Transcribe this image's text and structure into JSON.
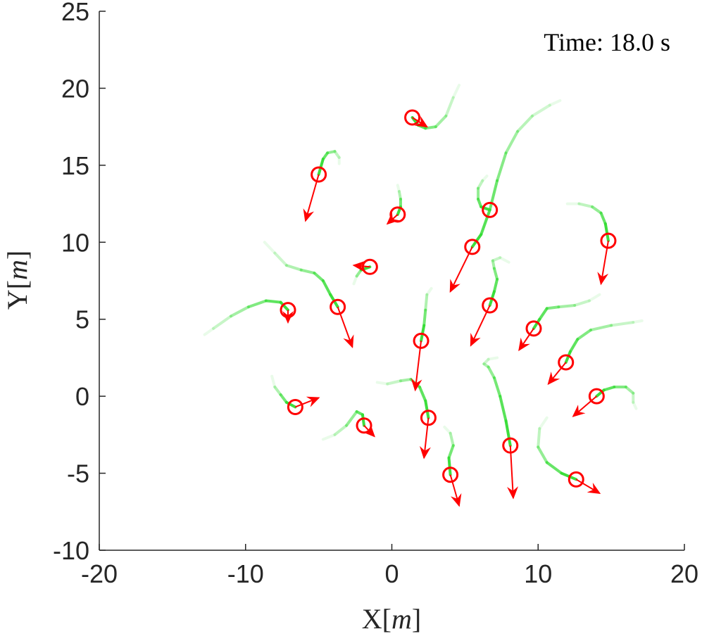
{
  "chart_data": {
    "type": "scatter",
    "title": "",
    "annotation": "Time: 18.0 s",
    "xlabel": {
      "base": "X",
      "unit": "m"
    },
    "ylabel": {
      "base": "Y",
      "unit": "m"
    },
    "xlim": [
      -20,
      20
    ],
    "ylim": [
      -10,
      25
    ],
    "x_ticks": [
      -20,
      -10,
      0,
      10,
      20
    ],
    "y_ticks": [
      -10,
      -5,
      0,
      5,
      10,
      15,
      20,
      25
    ],
    "x_tick_labels": [
      "-20",
      "-10",
      "0",
      "10",
      "20"
    ],
    "y_tick_labels": [
      "-10",
      "-5",
      "0",
      "5",
      "10",
      "15",
      "20",
      "25"
    ],
    "grid": false,
    "colors": {
      "agent": "#ff0000",
      "trail": "#33dd33",
      "axis": "#262626"
    },
    "agents": [
      {
        "x": 1.4,
        "y": 18.1,
        "vx": 1.0,
        "vy": -0.6,
        "trail": [
          [
            1.4,
            18.1
          ],
          [
            1.8,
            17.6
          ],
          [
            2.3,
            17.4
          ],
          [
            3.0,
            17.5
          ],
          [
            3.7,
            18.2
          ],
          [
            4.2,
            19.4
          ],
          [
            4.6,
            20.2
          ]
        ]
      },
      {
        "x": -5.0,
        "y": 14.4,
        "vx": -0.9,
        "vy": -3.0,
        "trail": [
          [
            -5.0,
            14.4
          ],
          [
            -4.7,
            15.4
          ],
          [
            -4.4,
            15.8
          ],
          [
            -3.9,
            15.9
          ],
          [
            -3.6,
            15.5
          ],
          [
            -3.6,
            15.1
          ]
        ]
      },
      {
        "x": 0.4,
        "y": 11.8,
        "vx": -0.7,
        "vy": -0.6,
        "trail": [
          [
            0.4,
            11.8
          ],
          [
            0.6,
            12.3
          ],
          [
            0.6,
            12.8
          ],
          [
            0.5,
            13.3
          ],
          [
            0.4,
            13.7
          ]
        ]
      },
      {
        "x": 6.7,
        "y": 12.1,
        "vx": 0,
        "vy": 0,
        "trail": [
          [
            6.7,
            12.1
          ],
          [
            6.1,
            12.3
          ],
          [
            5.9,
            12.8
          ],
          [
            5.9,
            13.5
          ],
          [
            6.2,
            14.0
          ],
          [
            6.5,
            14.3
          ]
        ]
      },
      {
        "x": 5.5,
        "y": 9.7,
        "vx": -1.5,
        "vy": -2.9,
        "trail": [
          [
            5.5,
            9.7
          ],
          [
            6.1,
            10.5
          ],
          [
            6.7,
            12.1
          ],
          [
            7.2,
            14.0
          ],
          [
            7.8,
            15.8
          ],
          [
            8.6,
            17.2
          ],
          [
            9.6,
            18.2
          ],
          [
            10.8,
            18.9
          ],
          [
            11.5,
            19.2
          ]
        ]
      },
      {
        "x": 14.8,
        "y": 10.1,
        "vx": -0.5,
        "vy": -2.8,
        "trail": [
          [
            14.8,
            10.1
          ],
          [
            14.6,
            11.2
          ],
          [
            14.3,
            11.9
          ],
          [
            13.7,
            12.3
          ],
          [
            12.8,
            12.5
          ],
          [
            12.0,
            12.5
          ]
        ]
      },
      {
        "x": -1.5,
        "y": 8.4,
        "vx": -1.1,
        "vy": 0.1,
        "trail": [
          [
            -1.5,
            8.4
          ],
          [
            -2.1,
            8.2
          ],
          [
            -2.4,
            7.8
          ],
          [
            -2.6,
            7.3
          ]
        ]
      },
      {
        "x": -7.1,
        "y": 5.6,
        "vx": 0,
        "vy": -0.8,
        "trail": [
          [
            -7.1,
            5.6
          ],
          [
            -7.6,
            6.1
          ],
          [
            -8.6,
            6.2
          ],
          [
            -9.8,
            5.8
          ],
          [
            -11.0,
            5.2
          ],
          [
            -12.2,
            4.4
          ],
          [
            -12.8,
            4.0
          ]
        ]
      },
      {
        "x": -3.7,
        "y": 5.8,
        "vx": 1.0,
        "vy": -2.6,
        "trail": [
          [
            -3.7,
            5.8
          ],
          [
            -4.2,
            6.6
          ],
          [
            -4.7,
            7.5
          ],
          [
            -5.3,
            8.0
          ],
          [
            -6.2,
            8.2
          ],
          [
            -7.2,
            8.5
          ],
          [
            -8.0,
            9.3
          ],
          [
            -8.7,
            10.0
          ]
        ]
      },
      {
        "x": 6.7,
        "y": 5.9,
        "vx": -1.3,
        "vy": -2.6,
        "trail": [
          [
            6.7,
            5.9
          ],
          [
            7.0,
            6.8
          ],
          [
            7.2,
            7.6
          ],
          [
            7.0,
            8.3
          ],
          [
            6.9,
            8.8
          ],
          [
            7.4,
            9.0
          ],
          [
            8.0,
            8.7
          ]
        ]
      },
      {
        "x": 2.0,
        "y": 3.6,
        "vx": -0.4,
        "vy": -3.2,
        "trail": [
          [
            2.0,
            3.6
          ],
          [
            2.2,
            4.6
          ],
          [
            2.3,
            5.6
          ],
          [
            2.4,
            6.6
          ],
          [
            2.7,
            7.0
          ]
        ]
      },
      {
        "x": 9.7,
        "y": 4.4,
        "vx": -1.0,
        "vy": -1.4,
        "trail": [
          [
            9.7,
            4.4
          ],
          [
            10.1,
            5.0
          ],
          [
            10.6,
            5.7
          ],
          [
            11.4,
            5.8
          ],
          [
            12.5,
            5.9
          ],
          [
            13.5,
            6.2
          ],
          [
            14.2,
            6.6
          ]
        ]
      },
      {
        "x": 11.9,
        "y": 2.2,
        "vx": -1.2,
        "vy": -1.4,
        "trail": [
          [
            11.9,
            2.2
          ],
          [
            12.2,
            2.9
          ],
          [
            12.7,
            3.7
          ],
          [
            13.6,
            4.3
          ],
          [
            15.0,
            4.6
          ],
          [
            16.5,
            4.8
          ],
          [
            17.1,
            4.9
          ]
        ]
      },
      {
        "x": 14.0,
        "y": 0.0,
        "vx": -1.6,
        "vy": -1.3,
        "trail": [
          [
            14.0,
            0.0
          ],
          [
            14.5,
            0.4
          ],
          [
            15.2,
            0.6
          ],
          [
            16.0,
            0.6
          ],
          [
            16.5,
            0.2
          ],
          [
            16.5,
            -0.4
          ],
          [
            16.7,
            -0.8
          ]
        ]
      },
      {
        "x": -6.6,
        "y": -0.7,
        "vx": 1.6,
        "vy": 0.6,
        "trail": [
          [
            -6.6,
            -0.7
          ],
          [
            -7.2,
            -0.4
          ],
          [
            -7.6,
            0.1
          ],
          [
            -8.0,
            0.6
          ],
          [
            -8.2,
            1.3
          ]
        ]
      },
      {
        "x": -1.9,
        "y": -1.9,
        "vx": 0.7,
        "vy": -0.7,
        "trail": [
          [
            -1.9,
            -1.9
          ],
          [
            -2.0,
            -1.2
          ],
          [
            -2.4,
            -1.0
          ],
          [
            -3.1,
            -1.9
          ],
          [
            -3.9,
            -2.5
          ],
          [
            -4.7,
            -2.8
          ]
        ]
      },
      {
        "x": 2.5,
        "y": -1.4,
        "vx": -0.3,
        "vy": -2.6,
        "trail": [
          [
            2.5,
            -1.4
          ],
          [
            2.3,
            -0.3
          ],
          [
            1.9,
            0.6
          ],
          [
            1.3,
            1.1
          ],
          [
            0.6,
            1.0
          ],
          [
            -0.3,
            0.8
          ],
          [
            -1.0,
            0.9
          ]
        ]
      },
      {
        "x": 8.1,
        "y": -3.2,
        "vx": 0.2,
        "vy": -3.4,
        "trail": [
          [
            8.1,
            -3.2
          ],
          [
            7.8,
            -1.6
          ],
          [
            7.4,
            0.0
          ],
          [
            7.0,
            1.2
          ],
          [
            6.6,
            1.9
          ],
          [
            6.3,
            2.1
          ],
          [
            6.6,
            2.4
          ],
          [
            7.2,
            2.5
          ]
        ]
      },
      {
        "x": 4.0,
        "y": -5.1,
        "vx": 0.6,
        "vy": -2.0,
        "trail": [
          [
            4.0,
            -5.1
          ],
          [
            3.9,
            -4.0
          ],
          [
            4.2,
            -3.2
          ],
          [
            4.0,
            -2.4
          ],
          [
            3.6,
            -2.0
          ]
        ]
      },
      {
        "x": 12.6,
        "y": -5.4,
        "vx": 1.6,
        "vy": -0.9,
        "trail": [
          [
            12.6,
            -5.4
          ],
          [
            11.6,
            -5.0
          ],
          [
            10.6,
            -4.3
          ],
          [
            10.0,
            -3.3
          ],
          [
            10.1,
            -2.1
          ],
          [
            10.6,
            -1.4
          ]
        ]
      }
    ]
  }
}
